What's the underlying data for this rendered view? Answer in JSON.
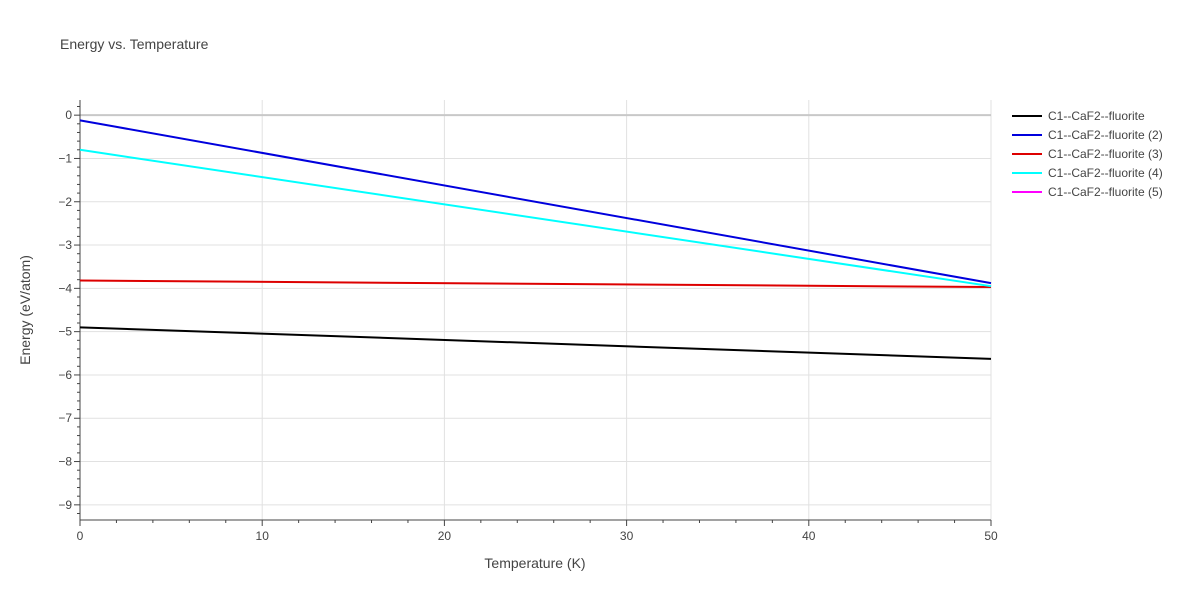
{
  "chart_data": {
    "type": "line",
    "title": "Energy vs. Temperature",
    "xlabel": "Temperature (K)",
    "ylabel": "Energy (eV/atom)",
    "xlim": [
      0,
      50
    ],
    "ylim": [
      -9.35,
      0.35
    ],
    "x_ticks": [
      0,
      10,
      20,
      30,
      40,
      50
    ],
    "y_ticks": [
      0,
      -1,
      -2,
      -3,
      -4,
      -5,
      -6,
      -7,
      -8,
      -9
    ],
    "grid": true,
    "legend_position": "top-right outside",
    "series": [
      {
        "name": "C1--CaF2--fluorite",
        "color": "#000000",
        "x": [
          0,
          50
        ],
        "y": [
          -4.9,
          -5.63
        ]
      },
      {
        "name": "C1--CaF2--fluorite (2)",
        "color": "#0000dd",
        "x": [
          0,
          50
        ],
        "y": [
          -0.12,
          -3.88
        ]
      },
      {
        "name": "C1--CaF2--fluorite (3)",
        "color": "#dd0000",
        "x": [
          0,
          50
        ],
        "y": [
          -3.82,
          -3.97
        ]
      },
      {
        "name": "C1--CaF2--fluorite (4)",
        "color": "#00ffff",
        "x": [
          0,
          50
        ],
        "y": [
          -0.8,
          -3.95
        ]
      },
      {
        "name": "C1--CaF2--fluorite (5)",
        "color": "#ff00ff",
        "x": [],
        "y": []
      }
    ]
  }
}
